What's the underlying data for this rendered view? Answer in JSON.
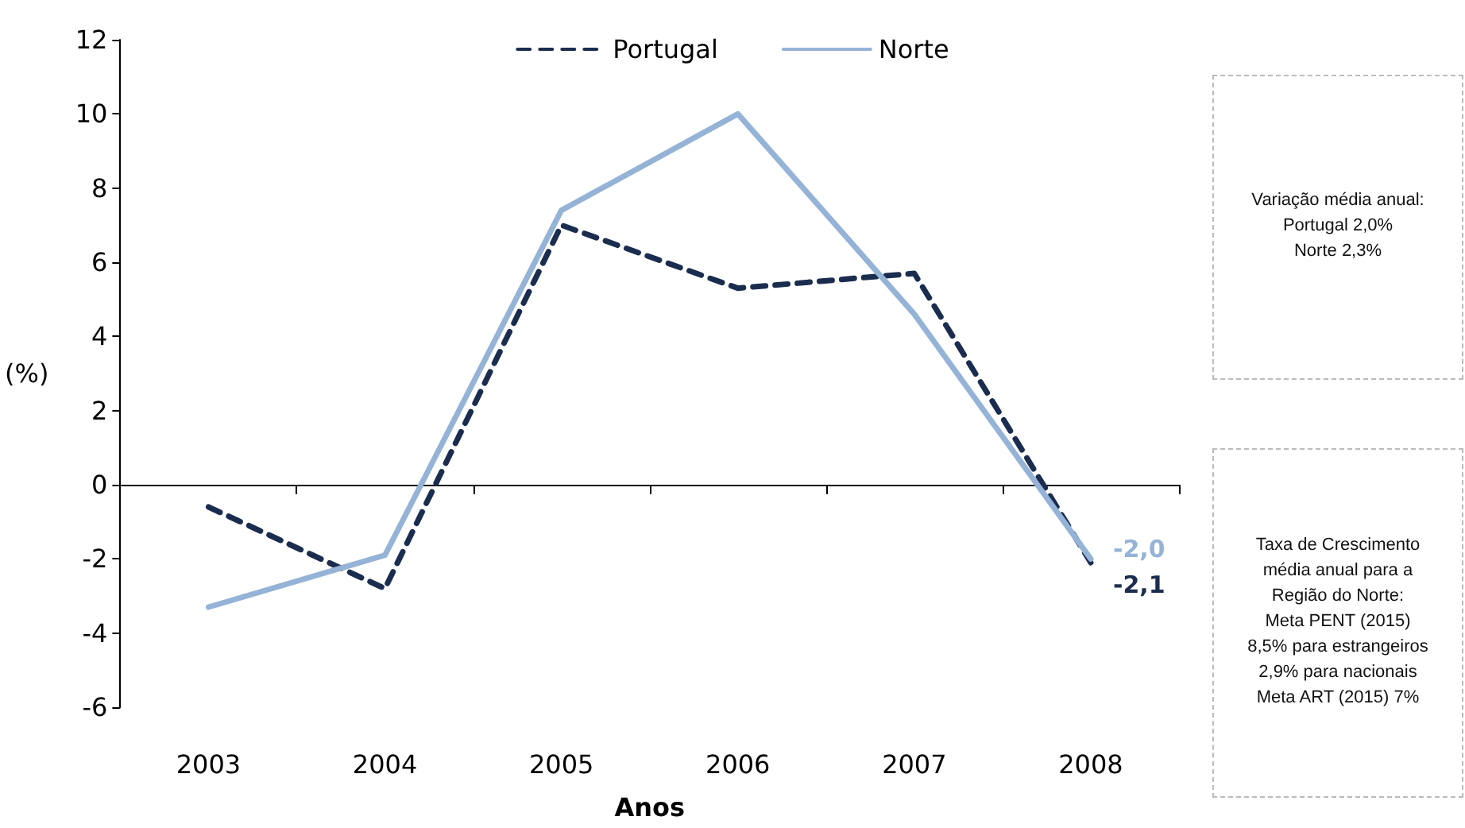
{
  "chart_data": {
    "type": "line",
    "xlabel": "Anos",
    "ylabel": "(%)",
    "categories": [
      "2003",
      "2004",
      "2005",
      "2006",
      "2007",
      "2008"
    ],
    "series": [
      {
        "name": "Portugal",
        "color": "#1b2d4f",
        "line_style": "dashed",
        "values": [
          -0.6,
          -2.8,
          7.0,
          5.3,
          5.7,
          -2.1
        ],
        "value_labels": [
          null,
          null,
          null,
          null,
          null,
          "-2,1"
        ]
      },
      {
        "name": "Norte",
        "color": "#95b3d7",
        "line_style": "solid",
        "values": [
          -3.3,
          -1.9,
          7.4,
          10.0,
          4.6,
          -2.0
        ],
        "value_labels": [
          null,
          null,
          null,
          null,
          null,
          "-2,0"
        ]
      }
    ],
    "ylim": [
      -6,
      12
    ],
    "yticks": [
      -6,
      -4,
      -2,
      0,
      2,
      4,
      6,
      8,
      10,
      12
    ],
    "legend": "top",
    "marker": "none",
    "annotations": [
      "Variação média anual:\nPortugal 2,0%\nNorte 2,3%",
      "Taxa de Crescimento\nmédia anual para a\nRegião do Norte:\nMeta PENT (2015)\n8,5% para estrangeiros\n2,9% para nacionais\nMeta ART  (2015) 7%"
    ]
  }
}
